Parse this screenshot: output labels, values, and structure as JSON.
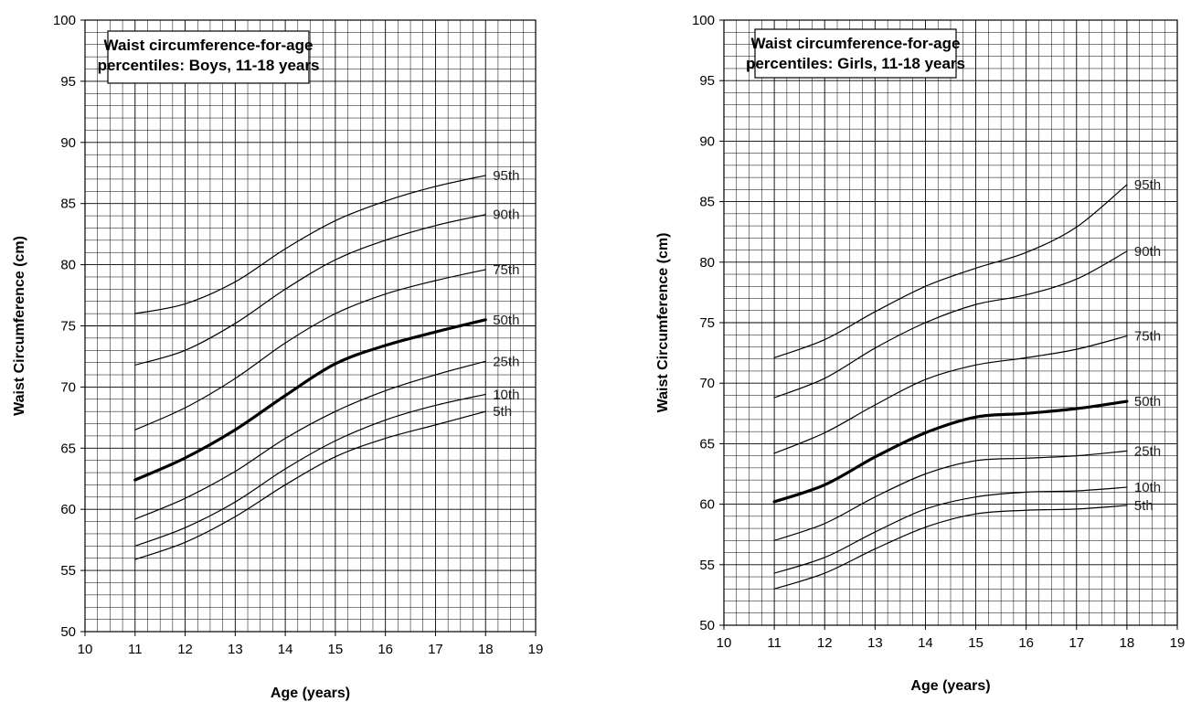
{
  "chart_data": [
    {
      "type": "line",
      "title": "Waist circumference-for-age percentiles: Boys, 11-18 years",
      "title_lines": [
        "Waist circumference-for-age",
        "percentiles: Boys, 11-18 years"
      ],
      "xlabel": "Age (years)",
      "ylabel": "Waist Circumference (cm)",
      "xlim": [
        10,
        19
      ],
      "ylim": [
        50,
        100
      ],
      "x_ticks": [
        "10",
        "11",
        "12",
        "13",
        "14",
        "15",
        "16",
        "17",
        "18",
        "19"
      ],
      "y_ticks": [
        "50",
        "55",
        "60",
        "65",
        "70",
        "75",
        "80",
        "85",
        "90",
        "95",
        "100"
      ],
      "grid": true,
      "x": [
        11,
        12,
        13,
        14,
        15,
        16,
        17,
        18
      ],
      "series": [
        {
          "name": "95th",
          "values": [
            76.0,
            76.8,
            78.6,
            81.3,
            83.6,
            85.2,
            86.4,
            87.3
          ]
        },
        {
          "name": "90th",
          "values": [
            71.8,
            73.0,
            75.2,
            78.0,
            80.4,
            82.0,
            83.2,
            84.1
          ]
        },
        {
          "name": "75th",
          "values": [
            66.5,
            68.3,
            70.7,
            73.6,
            76.0,
            77.6,
            78.7,
            79.6
          ]
        },
        {
          "name": "50th",
          "values": [
            62.4,
            64.2,
            66.5,
            69.3,
            71.9,
            73.4,
            74.5,
            75.5
          ]
        },
        {
          "name": "25th",
          "values": [
            59.2,
            60.9,
            63.1,
            65.8,
            68.0,
            69.7,
            71.0,
            72.1
          ]
        },
        {
          "name": "10th",
          "values": [
            57.0,
            58.5,
            60.6,
            63.3,
            65.6,
            67.3,
            68.5,
            69.4
          ]
        },
        {
          "name": "5th",
          "values": [
            55.9,
            57.3,
            59.4,
            62.0,
            64.3,
            65.8,
            66.9,
            68.0
          ]
        }
      ]
    },
    {
      "type": "line",
      "title": "Waist circumference-for-age percentiles: Girls, 11-18 years",
      "title_lines": [
        "Waist circumference-for-age",
        "percentiles: Girls, 11-18 years"
      ],
      "xlabel": "Age (years)",
      "ylabel": "Waist Circumference (cm)",
      "xlim": [
        10,
        19
      ],
      "ylim": [
        50,
        100
      ],
      "x_ticks": [
        "10",
        "11",
        "12",
        "13",
        "14",
        "15",
        "16",
        "17",
        "18",
        "19"
      ],
      "y_ticks": [
        "50",
        "55",
        "60",
        "65",
        "70",
        "75",
        "80",
        "85",
        "90",
        "95",
        "100"
      ],
      "grid": true,
      "x": [
        11,
        12,
        13,
        14,
        15,
        16,
        17,
        18
      ],
      "series": [
        {
          "name": "95th",
          "values": [
            72.1,
            73.6,
            75.9,
            78.0,
            79.5,
            80.8,
            82.9,
            86.4
          ]
        },
        {
          "name": "90th",
          "values": [
            68.8,
            70.4,
            72.9,
            75.0,
            76.5,
            77.3,
            78.6,
            80.9
          ]
        },
        {
          "name": "75th",
          "values": [
            64.2,
            65.9,
            68.2,
            70.3,
            71.5,
            72.1,
            72.8,
            73.9
          ]
        },
        {
          "name": "50th",
          "values": [
            60.2,
            61.6,
            63.9,
            65.9,
            67.2,
            67.5,
            67.9,
            68.5
          ]
        },
        {
          "name": "25th",
          "values": [
            57.0,
            58.4,
            60.6,
            62.5,
            63.6,
            63.8,
            64.0,
            64.4
          ]
        },
        {
          "name": "10th",
          "values": [
            54.3,
            55.6,
            57.7,
            59.6,
            60.6,
            61.0,
            61.1,
            61.4
          ]
        },
        {
          "name": "5th",
          "values": [
            53.0,
            54.3,
            56.3,
            58.1,
            59.2,
            59.5,
            59.6,
            59.9
          ]
        }
      ]
    }
  ]
}
